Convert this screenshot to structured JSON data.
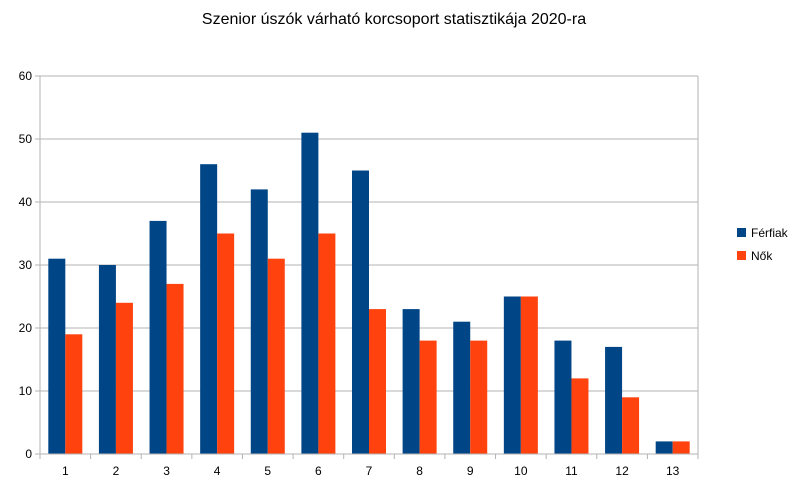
{
  "chart_data": {
    "type": "bar",
    "title": "Szenior úszók várható korcsoport statisztikája 2020-ra",
    "xlabel": "",
    "ylabel": "",
    "categories": [
      "1",
      "2",
      "3",
      "4",
      "5",
      "6",
      "7",
      "8",
      "9",
      "10",
      "11",
      "12",
      "13"
    ],
    "series": [
      {
        "name": "Férfiak",
        "color": "#004586",
        "values": [
          31,
          30,
          37,
          46,
          42,
          51,
          45,
          23,
          21,
          25,
          18,
          17,
          2
        ]
      },
      {
        "name": "Nők",
        "color": "#ff420e",
        "values": [
          19,
          24,
          27,
          35,
          31,
          35,
          23,
          18,
          18,
          25,
          12,
          9,
          2
        ]
      }
    ],
    "ylim": [
      0,
      60
    ],
    "yticks": [
      0,
      10,
      20,
      30,
      40,
      50,
      60
    ],
    "grid": true,
    "legend_position": "right"
  }
}
